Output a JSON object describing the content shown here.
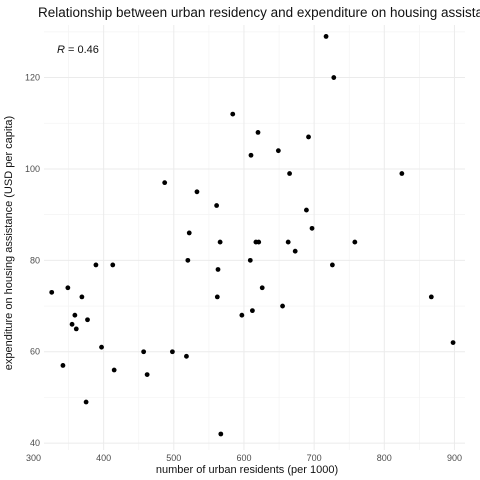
{
  "chart_data": {
    "type": "scatter",
    "title": "Relationship between urban residency and expenditure on housing assistance",
    "xlabel": "number of urban residents (per 1000)",
    "ylabel": "expenditure on housing assistance (USD per capita)",
    "annotation": {
      "symbol": "R",
      "text": " = 0.46"
    },
    "xlim": [
      315,
      915
    ],
    "ylim": [
      38.5,
      131.5
    ],
    "x_ticks": [
      300,
      400,
      500,
      600,
      700,
      800,
      900
    ],
    "y_ticks": [
      40,
      60,
      80,
      100,
      120
    ],
    "grid": true,
    "legend": "none",
    "colors": {
      "point": "#000000",
      "grid": "#ebebeb",
      "background": "#ffffff"
    },
    "points": [
      {
        "x": 326,
        "y": 73
      },
      {
        "x": 342,
        "y": 57
      },
      {
        "x": 349,
        "y": 74
      },
      {
        "x": 355,
        "y": 66
      },
      {
        "x": 359,
        "y": 68
      },
      {
        "x": 361,
        "y": 65
      },
      {
        "x": 369,
        "y": 72
      },
      {
        "x": 375,
        "y": 49
      },
      {
        "x": 377,
        "y": 67
      },
      {
        "x": 389,
        "y": 79
      },
      {
        "x": 397,
        "y": 61
      },
      {
        "x": 413,
        "y": 79
      },
      {
        "x": 415,
        "y": 56
      },
      {
        "x": 457,
        "y": 60
      },
      {
        "x": 462,
        "y": 55
      },
      {
        "x": 487,
        "y": 97
      },
      {
        "x": 498,
        "y": 60
      },
      {
        "x": 518,
        "y": 59
      },
      {
        "x": 520,
        "y": 80
      },
      {
        "x": 522,
        "y": 86
      },
      {
        "x": 533,
        "y": 95
      },
      {
        "x": 561,
        "y": 92
      },
      {
        "x": 562,
        "y": 72
      },
      {
        "x": 563,
        "y": 78
      },
      {
        "x": 566,
        "y": 84
      },
      {
        "x": 567,
        "y": 42
      },
      {
        "x": 584,
        "y": 112
      },
      {
        "x": 597,
        "y": 68
      },
      {
        "x": 609,
        "y": 80
      },
      {
        "x": 610,
        "y": 103
      },
      {
        "x": 612,
        "y": 69
      },
      {
        "x": 617,
        "y": 84
      },
      {
        "x": 620,
        "y": 108
      },
      {
        "x": 621,
        "y": 84
      },
      {
        "x": 626,
        "y": 74
      },
      {
        "x": 649,
        "y": 104
      },
      {
        "x": 655,
        "y": 70
      },
      {
        "x": 663,
        "y": 84
      },
      {
        "x": 665,
        "y": 99
      },
      {
        "x": 673,
        "y": 82
      },
      {
        "x": 689,
        "y": 91
      },
      {
        "x": 692,
        "y": 107
      },
      {
        "x": 697,
        "y": 87
      },
      {
        "x": 717,
        "y": 129
      },
      {
        "x": 726,
        "y": 79
      },
      {
        "x": 728,
        "y": 120
      },
      {
        "x": 758,
        "y": 84
      },
      {
        "x": 825,
        "y": 99
      },
      {
        "x": 867,
        "y": 72
      },
      {
        "x": 898,
        "y": 62
      }
    ]
  }
}
